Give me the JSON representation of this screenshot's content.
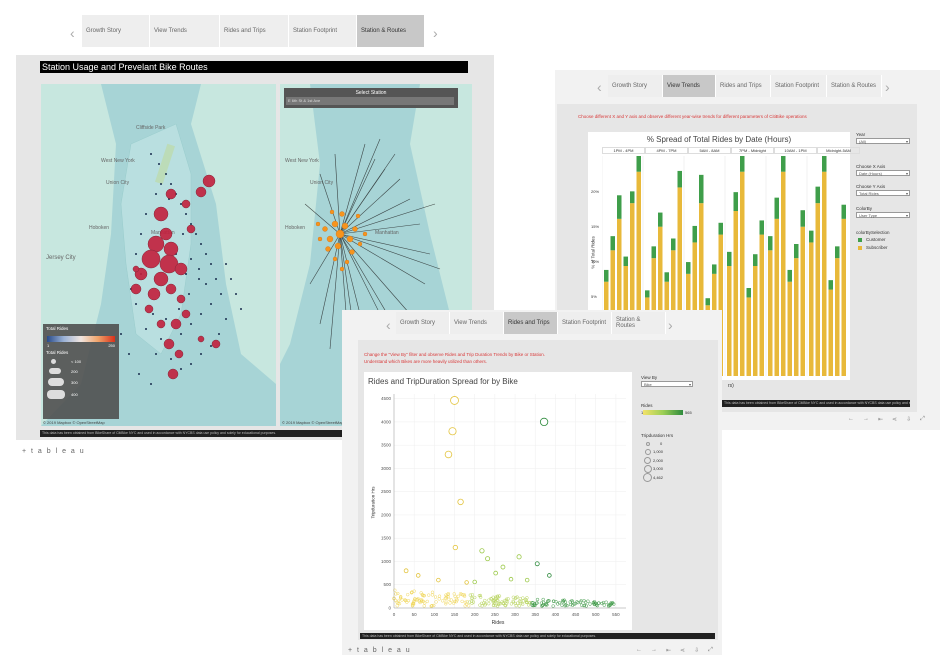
{
  "window1": {
    "tabs": [
      "Growth Story",
      "View Trends",
      "Rides and Trips",
      "Station Footprint",
      "Station & Routes"
    ],
    "active_tab": 4,
    "title": "Station Usage and Prevelant Bike Routes",
    "select_station_label": "Select Station",
    "select_station_value": "E 6th St & 1st Ave",
    "legend_total_rides_color": "Total Rides",
    "legend_range_min": "1",
    "legend_range_max": "250",
    "legend_total_rides_size": "Total Rides",
    "legend_sizes": [
      "< 100",
      "200",
      "300",
      "400"
    ],
    "map_credit_left": "© 2019 Mapbox © OpenStreetMap",
    "map_credit_right": "© 2019 Mapbox © OpenStreetMap",
    "map_places": [
      "Jersey City",
      "Hoboken",
      "Manhattan",
      "Cliffside Park",
      "West New York",
      "Union City",
      "Central Park"
    ],
    "footer": "This data has been obtained from BikeShare of CitiBike NYC and used in accordance with NYCBS data use policy and solely for educational purposes.",
    "brand": "+ t a b l e a u"
  },
  "window2": {
    "tabs": [
      "Growth Story",
      "View Trends",
      "Rides and Trips",
      "Station Footprint",
      "Station & Routes"
    ],
    "active_tab": 1,
    "instruction": "Choose different X and Y axis and observe different year-wise trends for different parameters of CitiBike operations",
    "chart_title": "% Spread of Total Rides by Date (Hours)",
    "panel_headers": [
      "1PM - 4PM",
      "4PM - 7PM",
      "5AM - 8AM",
      "7PM - Midnight",
      "10AM - 1PM",
      "Midnight-5AM"
    ],
    "y_axis_label": "% of Total Rides",
    "y_ticks": [
      "20%",
      "15%",
      "10%",
      "5%"
    ],
    "x_axis_partial": "rs)",
    "controls": {
      "year_label": "Year",
      "year_value": "(All)",
      "x_label": "Choose X Axis",
      "x_value": "Date (Hours)",
      "y_label": "Choose Y Axis",
      "y_value": "Total Rides",
      "colorby_label": "ColorBy",
      "colorby_value": "User Type",
      "legend_title": "colorBySelection",
      "legend_items": [
        {
          "name": "Customer",
          "color": "#3f9e4a"
        },
        {
          "name": "Subscriber",
          "color": "#e8b93a"
        }
      ]
    },
    "footer": "This data has been obtained from BikeShare of CitiBike NYC and used in accordance with NYCBS data use policy and solely for educational purposes."
  },
  "window3": {
    "tabs": [
      "Growth Story",
      "View Trends",
      "Rides and Trips",
      "Station Footprint",
      "Station & Routes"
    ],
    "active_tab": 2,
    "instruction_line1": "Change the \"View By\" filter and observe Rides and Trip Duration Trends by Bike or Station.",
    "instruction_line2": "Understand which Bikes are more heavily utilized than others.",
    "chart_title": "Rides and TripDuration Spread for by Bike",
    "x_label": "Rides",
    "y_label": "Tripduration Hrs",
    "view_by_label": "View By",
    "view_by_value": "Bike",
    "rides_legend_title": "Rides",
    "rides_legend_min": "1",
    "rides_legend_max": "565",
    "trip_legend_title": "Tripduration Hrs",
    "trip_legend_items": [
      "0",
      "1,000",
      "2,000",
      "3,000",
      "4,462"
    ],
    "footer": "This data has been obtained from BikeShare of CitiBike NYC and used in accordance with NYCBS data use policy and solely for educational purposes.",
    "brand": "+ t a b l e a u"
  },
  "chart_data": [
    {
      "type": "scatter",
      "title": "Rides and TripDuration Spread for by Bike",
      "xlabel": "Rides",
      "ylabel": "Tripduration Hrs",
      "xlim": [
        0,
        575
      ],
      "ylim": [
        0,
        4600
      ],
      "x_ticks": [
        0,
        50,
        100,
        150,
        200,
        250,
        300,
        350,
        400,
        450,
        500,
        550
      ],
      "y_ticks": [
        0,
        500,
        1000,
        1500,
        2000,
        2500,
        3000,
        3500,
        4000,
        4500
      ],
      "points": [
        {
          "x": 150,
          "y": 4462
        },
        {
          "x": 145,
          "y": 3800
        },
        {
          "x": 135,
          "y": 3300
        },
        {
          "x": 165,
          "y": 2280
        },
        {
          "x": 372,
          "y": 4000
        },
        {
          "x": 152,
          "y": 1300
        },
        {
          "x": 218,
          "y": 1230
        },
        {
          "x": 232,
          "y": 1060
        },
        {
          "x": 310,
          "y": 1100
        },
        {
          "x": 355,
          "y": 950
        },
        {
          "x": 270,
          "y": 880
        },
        {
          "x": 385,
          "y": 700
        },
        {
          "x": 252,
          "y": 750
        },
        {
          "x": 30,
          "y": 800
        },
        {
          "x": 290,
          "y": 620
        },
        {
          "x": 330,
          "y": 600
        },
        {
          "x": 60,
          "y": 700
        },
        {
          "x": 200,
          "y": 560
        },
        {
          "x": 110,
          "y": 600
        },
        {
          "x": 180,
          "y": 550
        }
      ]
    },
    {
      "type": "bar",
      "title": "% Spread of Total Rides by Date (Hours)",
      "ylabel": "% of Total Rides",
      "panels": [
        "1PM - 4PM",
        "4PM - 7PM",
        "5AM - 8AM",
        "7PM - Midnight",
        "10AM - 1PM",
        "Midnight-5AM"
      ],
      "series": [
        {
          "name": "Subscriber",
          "values": [
            12,
            16,
            20,
            14,
            22,
            26,
            10,
            15,
            19,
            12,
            16,
            24,
            13,
            17,
            22,
            9,
            13,
            18,
            14,
            21,
            26,
            10,
            14,
            18,
            16,
            20,
            26,
            12,
            15,
            19,
            17,
            22,
            26,
            11,
            15,
            20
          ]
        },
        {
          "name": "Customer",
          "values": [
            0.5,
            0.6,
            1,
            0.4,
            0.5,
            0.8,
            0.3,
            0.5,
            0.6,
            0.4,
            0.5,
            0.7,
            0.5,
            0.7,
            1.2,
            0.3,
            0.4,
            0.5,
            0.6,
            0.8,
            1.4,
            0.4,
            0.5,
            0.6,
            0.6,
            0.9,
            1.5,
            0.5,
            0.6,
            0.7,
            0.5,
            0.7,
            1.1,
            0.4,
            0.5,
            0.6
          ]
        }
      ]
    }
  ]
}
